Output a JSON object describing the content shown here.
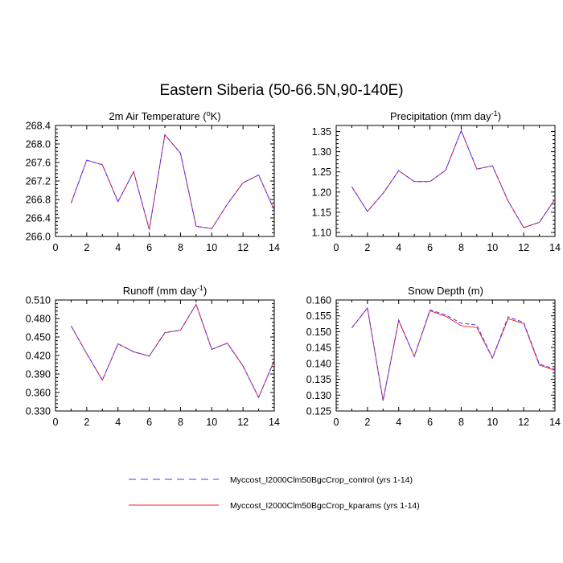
{
  "title": "Eastern Siberia (50-66.5N,90-140E)",
  "legend": {
    "control": "Myccost_I2000Clm50BgcCrop_control (yrs 1-14)",
    "kparams": "Myccost_I2000Clm50BgcCrop_kparams (yrs 1-14)"
  },
  "colors": {
    "control": "#3d3dff",
    "kparams": "#ff2020"
  },
  "chart_data": [
    {
      "type": "line",
      "title": "2m Air Temperature (°K)",
      "title_parts": [
        "2m Air Temperature (",
        "o",
        "K)"
      ],
      "x": [
        1,
        2,
        3,
        4,
        5,
        6,
        7,
        8,
        9,
        10,
        11,
        12,
        13,
        14
      ],
      "xlim": [
        0,
        14
      ],
      "xticks": [
        "0",
        "2",
        "4",
        "6",
        "8",
        "10",
        "12",
        "14"
      ],
      "ylim": [
        266.0,
        268.4
      ],
      "yticks": [
        "266.0",
        "266.4",
        "266.8",
        "267.2",
        "267.6",
        "268.0",
        "268.4"
      ],
      "series": [
        {
          "name": "Myccost_I2000Clm50BgcCrop_control (yrs 1-14)",
          "style": "dashed",
          "values": [
            266.72,
            267.65,
            267.55,
            266.75,
            267.4,
            266.15,
            268.2,
            267.8,
            266.22,
            266.17,
            266.7,
            267.16,
            267.33,
            266.57
          ]
        },
        {
          "name": "Myccost_I2000Clm50BgcCrop_kparams (yrs 1-14)",
          "style": "solid",
          "values": [
            266.72,
            267.65,
            267.55,
            266.75,
            267.4,
            266.15,
            268.2,
            267.8,
            266.22,
            266.17,
            266.7,
            267.16,
            267.33,
            266.57
          ]
        }
      ]
    },
    {
      "type": "line",
      "title": "Precipitation (mm day-1)",
      "title_parts": [
        "Precipitation (mm day",
        "-1",
        ")"
      ],
      "x": [
        1,
        2,
        3,
        4,
        5,
        6,
        7,
        8,
        9,
        10,
        11,
        12,
        13,
        14
      ],
      "xlim": [
        0,
        14
      ],
      "xticks": [
        "0",
        "2",
        "4",
        "6",
        "8",
        "10",
        "12",
        "14"
      ],
      "ylim": [
        1.09,
        1.365
      ],
      "yticks": [
        "1.10",
        "1.15",
        "1.20",
        "1.25",
        "1.30",
        "1.35"
      ],
      "ytick_values": [
        1.1,
        1.15,
        1.2,
        1.25,
        1.3,
        1.35
      ],
      "series": [
        {
          "name": "Myccost_I2000Clm50BgcCrop_control (yrs 1-14)",
          "style": "dashed",
          "values": [
            1.213,
            1.152,
            1.197,
            1.253,
            1.226,
            1.226,
            1.254,
            1.352,
            1.257,
            1.265,
            1.178,
            1.112,
            1.125,
            1.182
          ]
        },
        {
          "name": "Myccost_I2000Clm50BgcCrop_kparams (yrs 1-14)",
          "style": "solid",
          "values": [
            1.213,
            1.152,
            1.197,
            1.253,
            1.226,
            1.226,
            1.254,
            1.352,
            1.257,
            1.265,
            1.178,
            1.112,
            1.125,
            1.182
          ]
        }
      ]
    },
    {
      "type": "line",
      "title": "Runoff (mm day-1)",
      "title_parts": [
        "Runoff (mm day",
        "-1",
        ")"
      ],
      "x": [
        1,
        2,
        3,
        4,
        5,
        6,
        7,
        8,
        9,
        10,
        11,
        12,
        13,
        14
      ],
      "xlim": [
        0,
        14
      ],
      "xticks": [
        "0",
        "2",
        "4",
        "6",
        "8",
        "10",
        "12",
        "14"
      ],
      "ylim": [
        0.33,
        0.51
      ],
      "yticks": [
        "0.330",
        "0.360",
        "0.390",
        "0.420",
        "0.450",
        "0.480",
        "0.510"
      ],
      "series": [
        {
          "name": "Myccost_I2000Clm50BgcCrop_control (yrs 1-14)",
          "style": "dashed",
          "values": [
            0.468,
            0.423,
            0.38,
            0.439,
            0.426,
            0.419,
            0.457,
            0.461,
            0.503,
            0.43,
            0.44,
            0.403,
            0.352,
            0.412
          ]
        },
        {
          "name": "Myccost_I2000Clm50BgcCrop_kparams (yrs 1-14)",
          "style": "solid",
          "values": [
            0.468,
            0.423,
            0.38,
            0.439,
            0.426,
            0.419,
            0.457,
            0.461,
            0.503,
            0.43,
            0.44,
            0.403,
            0.352,
            0.412
          ]
        }
      ]
    },
    {
      "type": "line",
      "title": "Snow Depth (m)",
      "title_parts": [
        "Snow Depth (m)"
      ],
      "x": [
        1,
        2,
        3,
        4,
        5,
        6,
        7,
        8,
        9,
        10,
        11,
        12,
        13,
        14
      ],
      "xlim": [
        0,
        14
      ],
      "xticks": [
        "0",
        "2",
        "4",
        "6",
        "8",
        "10",
        "12",
        "14"
      ],
      "ylim": [
        0.125,
        0.16
      ],
      "yticks": [
        "0.125",
        "0.130",
        "0.135",
        "0.140",
        "0.145",
        "0.150",
        "0.155",
        "0.160"
      ],
      "series": [
        {
          "name": "Myccost_I2000Clm50BgcCrop_control (yrs 1-14)",
          "style": "dashed",
          "values": [
            0.1512,
            0.1575,
            0.1283,
            0.1537,
            0.1422,
            0.1569,
            0.1553,
            0.1527,
            0.1521,
            0.1417,
            0.1547,
            0.1529,
            0.1398,
            0.1382
          ]
        },
        {
          "name": "Myccost_I2000Clm50BgcCrop_kparams (yrs 1-14)",
          "style": "solid",
          "values": [
            0.1512,
            0.1575,
            0.1283,
            0.1535,
            0.1422,
            0.1566,
            0.1549,
            0.1519,
            0.1513,
            0.1417,
            0.1541,
            0.1526,
            0.1395,
            0.1378
          ]
        }
      ]
    }
  ]
}
